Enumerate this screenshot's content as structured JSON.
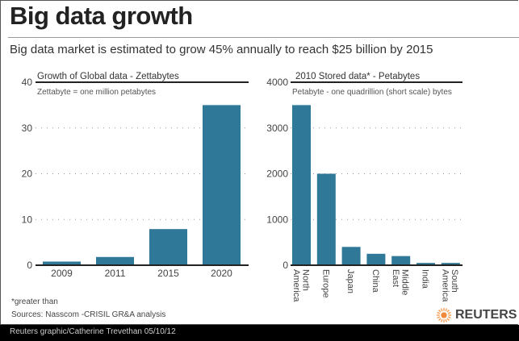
{
  "title": "Big data growth",
  "subtitle": "Big data market is estimated to grow 45% annually to reach $25 billion by 2015",
  "bar_color": "#2f7898",
  "chart_data": [
    {
      "type": "bar",
      "title": "Growth of Global data - Zettabytes",
      "note": "Zettabyte = one million petabytes",
      "categories": [
        "2009",
        "2011",
        "2015",
        "2020"
      ],
      "values": [
        0.8,
        1.8,
        7.9,
        35
      ],
      "ylim": [
        0,
        40
      ],
      "yticks": [
        "0",
        "10",
        "20",
        "30",
        "40"
      ],
      "grid": true
    },
    {
      "type": "bar",
      "title": "2010 Stored data* - Petabytes",
      "note": "Petabyte - one quadrillion (short scale) bytes",
      "categories": [
        "North\nAmerica",
        "Europe",
        "Japan",
        "China",
        "Middle\nEast",
        "India",
        "South\nAmerica"
      ],
      "values": [
        3500,
        2000,
        400,
        250,
        200,
        50,
        50
      ],
      "ylim": [
        0,
        4000
      ],
      "yticks": [
        "0",
        "1000",
        "2000",
        "3000",
        "4000"
      ],
      "grid": true
    }
  ],
  "footnote": "*greater than",
  "sources": "Sources: Nasscom -CRISIL GR&A analysis",
  "logo": "REUTERS",
  "credit": "Reuters graphic/Catherine Trevethan   05/10/12"
}
